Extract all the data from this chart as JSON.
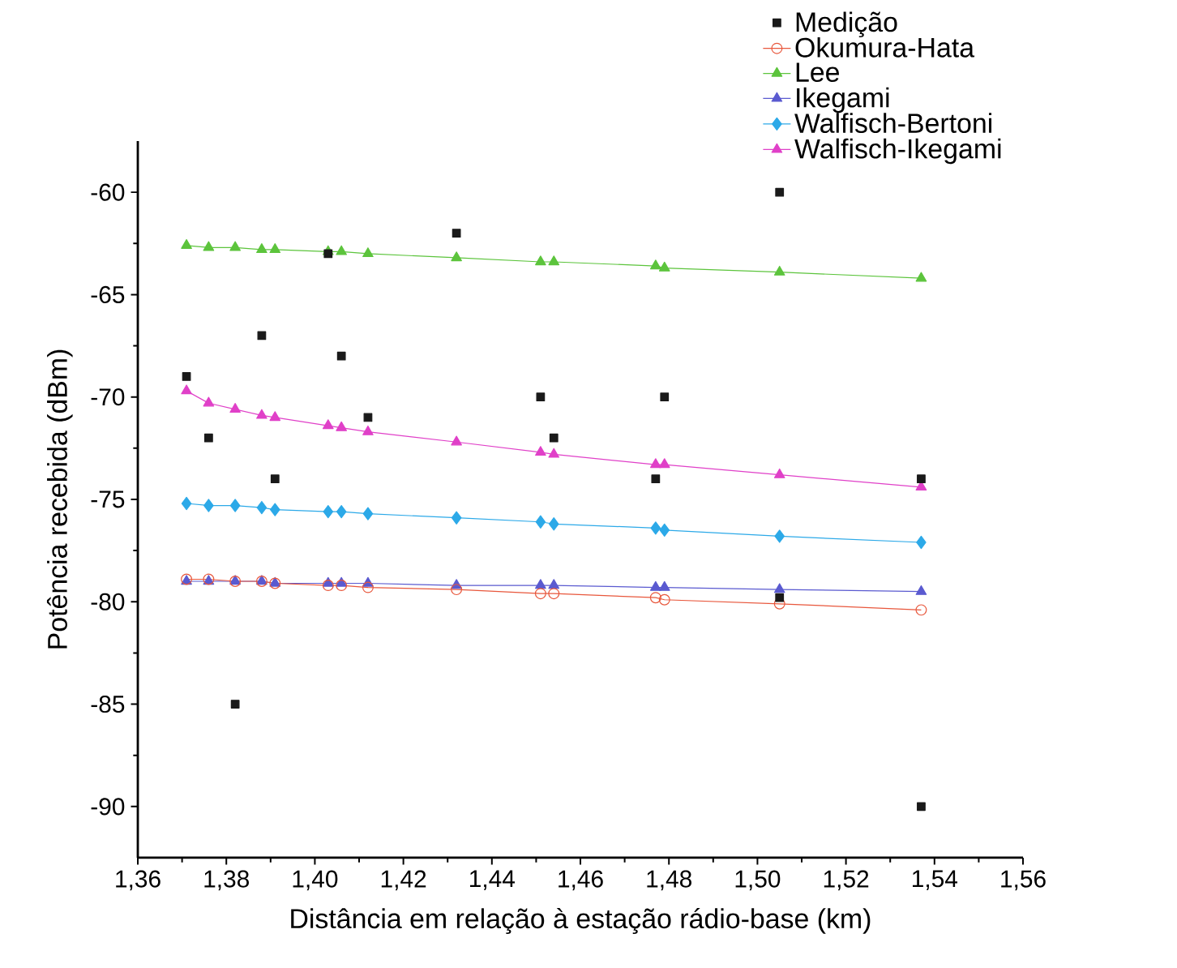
{
  "chart_data": {
    "type": "line",
    "xlabel": "Distância em relação à estação rádio-base (km)",
    "ylabel": "Potência recebida (dBm)",
    "xlim": [
      1.36,
      1.56
    ],
    "ylim": [
      -92.5,
      -57.5
    ],
    "xticks": [
      {
        "value": 1.36,
        "label": "1,36"
      },
      {
        "value": 1.38,
        "label": "1,38"
      },
      {
        "value": 1.4,
        "label": "1,40"
      },
      {
        "value": 1.42,
        "label": "1,42"
      },
      {
        "value": 1.44,
        "label": "1,44"
      },
      {
        "value": 1.46,
        "label": "1,46"
      },
      {
        "value": 1.48,
        "label": "1,48"
      },
      {
        "value": 1.5,
        "label": "1,50"
      },
      {
        "value": 1.52,
        "label": "1,52"
      },
      {
        "value": 1.54,
        "label": "1,54"
      },
      {
        "value": 1.56,
        "label": "1,56"
      }
    ],
    "yticks": [
      -90,
      -85,
      -80,
      -75,
      -70,
      -65,
      -60
    ],
    "legend": "top right",
    "grid": false,
    "series": [
      {
        "name": "Medição",
        "type": "scatter",
        "marker": "square",
        "color": "#1a1a1a",
        "x": [
          1.371,
          1.376,
          1.382,
          1.388,
          1.391,
          1.403,
          1.406,
          1.412,
          1.432,
          1.451,
          1.454,
          1.477,
          1.479,
          1.505,
          1.505,
          1.537,
          1.537
        ],
        "values": [
          -69,
          -72,
          -85,
          -67,
          -74,
          -63,
          -68,
          -71,
          -62,
          -70,
          -72,
          -74,
          -70,
          -60,
          -79.8,
          -74,
          -90
        ]
      },
      {
        "name": "Okumura-Hata",
        "type": "line",
        "marker": "circle",
        "color": "#e8573c",
        "x": [
          1.371,
          1.376,
          1.382,
          1.388,
          1.391,
          1.403,
          1.406,
          1.412,
          1.432,
          1.451,
          1.454,
          1.477,
          1.479,
          1.505,
          1.537
        ],
        "values": [
          -78.9,
          -78.9,
          -79.0,
          -79.0,
          -79.1,
          -79.2,
          -79.2,
          -79.3,
          -79.4,
          -79.6,
          -79.6,
          -79.8,
          -79.9,
          -80.1,
          -80.4
        ]
      },
      {
        "name": "Lee",
        "type": "line",
        "marker": "triangle",
        "color": "#5cc43c",
        "x": [
          1.371,
          1.376,
          1.382,
          1.388,
          1.391,
          1.403,
          1.406,
          1.412,
          1.432,
          1.451,
          1.454,
          1.477,
          1.479,
          1.505,
          1.537
        ],
        "values": [
          -62.6,
          -62.7,
          -62.7,
          -62.8,
          -62.8,
          -62.9,
          -62.9,
          -63.0,
          -63.2,
          -63.4,
          -63.4,
          -63.6,
          -63.7,
          -63.9,
          -64.2
        ]
      },
      {
        "name": "Ikegami",
        "type": "line",
        "marker": "triangle",
        "color": "#5a5ad0",
        "x": [
          1.371,
          1.376,
          1.382,
          1.388,
          1.391,
          1.403,
          1.406,
          1.412,
          1.432,
          1.451,
          1.454,
          1.477,
          1.479,
          1.505,
          1.537
        ],
        "values": [
          -79.0,
          -79.0,
          -79.0,
          -79.0,
          -79.1,
          -79.1,
          -79.1,
          -79.1,
          -79.2,
          -79.2,
          -79.2,
          -79.3,
          -79.3,
          -79.4,
          -79.5
        ]
      },
      {
        "name": "Walfisch-Bertoni",
        "type": "line",
        "marker": "diamond",
        "color": "#2ca9e8",
        "x": [
          1.371,
          1.376,
          1.382,
          1.388,
          1.391,
          1.403,
          1.406,
          1.412,
          1.432,
          1.451,
          1.454,
          1.477,
          1.479,
          1.505,
          1.537
        ],
        "values": [
          -75.2,
          -75.3,
          -75.3,
          -75.4,
          -75.5,
          -75.6,
          -75.6,
          -75.7,
          -75.9,
          -76.1,
          -76.2,
          -76.4,
          -76.5,
          -76.8,
          -77.1
        ]
      },
      {
        "name": "Walfisch-Ikegami",
        "type": "line",
        "marker": "triangle",
        "color": "#e040c8",
        "x": [
          1.371,
          1.376,
          1.382,
          1.388,
          1.391,
          1.403,
          1.406,
          1.412,
          1.432,
          1.451,
          1.454,
          1.477,
          1.479,
          1.505,
          1.537
        ],
        "values": [
          -69.7,
          -70.3,
          -70.6,
          -70.9,
          -71.0,
          -71.4,
          -71.5,
          -71.7,
          -72.2,
          -72.7,
          -72.8,
          -73.3,
          -73.3,
          -73.8,
          -74.4
        ]
      }
    ]
  }
}
